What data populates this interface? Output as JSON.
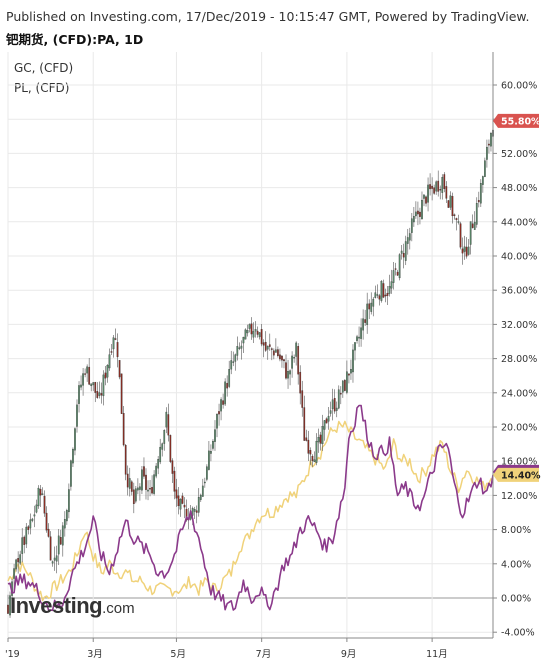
{
  "header": {
    "published": "Published on Investing.com, 17/Dec/2019 - 10:15:47 GMT, Powered by TradingView.",
    "symbol": "钯期货, (CFD):PA, 1D"
  },
  "legend": [
    {
      "label": "GC, (CFD)",
      "color": "#8b3a8b"
    },
    {
      "label": "PL, (CFD)",
      "color": "#f0d27a"
    }
  ],
  "logo": {
    "brand": "Investing",
    "domain": ".com"
  },
  "chart_data": {
    "type": "candlestick+line",
    "x_labels": [
      "'19",
      "3月",
      "5月",
      "7月",
      "9月",
      "11月"
    ],
    "x_label_positions": [
      0,
      42,
      83,
      125,
      167,
      209
    ],
    "num_bars": 240,
    "y_unit": "%",
    "ylim": [
      -4,
      62
    ],
    "yticks": [
      "60.00%",
      "56.00%",
      "52.00%",
      "48.00%",
      "44.00%",
      "40.00%",
      "36.00%",
      "32.00%",
      "28.00%",
      "24.00%",
      "20.00%",
      "16.00%",
      "12.00%",
      "8.00%",
      "4.00%",
      "0.00%",
      "-4.00%"
    ],
    "ytick_values": [
      60,
      56,
      52,
      48,
      44,
      40,
      36,
      32,
      28,
      24,
      20,
      16,
      12,
      8,
      4,
      0,
      -4
    ],
    "colors": {
      "up": "#5b8a6b",
      "down": "#8b2e24",
      "gc": "#8b3a8b",
      "pl": "#f0d27a"
    },
    "pa_series": {
      "name": "PA",
      "keypoints": [
        [
          0,
          -1
        ],
        [
          5,
          5
        ],
        [
          12,
          9
        ],
        [
          16,
          13
        ],
        [
          22,
          4
        ],
        [
          28,
          9
        ],
        [
          34,
          23
        ],
        [
          38,
          27
        ],
        [
          45,
          23
        ],
        [
          52,
          31
        ],
        [
          54,
          29
        ],
        [
          58,
          15
        ],
        [
          62,
          11
        ],
        [
          66,
          14
        ],
        [
          70,
          12
        ],
        [
          74,
          17
        ],
        [
          78,
          21
        ],
        [
          82,
          12
        ],
        [
          86,
          10
        ],
        [
          92,
          10
        ],
        [
          98,
          15
        ],
        [
          104,
          22
        ],
        [
          110,
          27
        ],
        [
          116,
          30
        ],
        [
          122,
          32
        ],
        [
          127,
          29
        ],
        [
          132,
          29
        ],
        [
          138,
          26
        ],
        [
          142,
          29
        ],
        [
          146,
          19
        ],
        [
          150,
          17
        ],
        [
          154,
          18
        ],
        [
          158,
          22
        ],
        [
          162,
          23
        ],
        [
          166,
          25
        ],
        [
          170,
          28
        ],
        [
          176,
          33
        ],
        [
          182,
          36
        ],
        [
          188,
          36
        ],
        [
          194,
          40
        ],
        [
          200,
          44
        ],
        [
          206,
          47
        ],
        [
          210,
          48
        ],
        [
          214,
          49
        ],
        [
          218,
          46
        ],
        [
          222,
          43
        ],
        [
          225,
          40
        ],
        [
          229,
          44
        ],
        [
          233,
          48
        ],
        [
          236,
          52
        ],
        [
          239,
          55.8
        ]
      ],
      "last_value": 55.8,
      "last_label": "55.80%"
    },
    "gc_series": {
      "name": "GC",
      "keypoints": [
        [
          0,
          1
        ],
        [
          6,
          2
        ],
        [
          10,
          2
        ],
        [
          14,
          1
        ],
        [
          20,
          -1
        ],
        [
          26,
          -1
        ],
        [
          32,
          3
        ],
        [
          38,
          6
        ],
        [
          42,
          9
        ],
        [
          46,
          5
        ],
        [
          50,
          3
        ],
        [
          54,
          6
        ],
        [
          58,
          9
        ],
        [
          62,
          7
        ],
        [
          66,
          6
        ],
        [
          70,
          5
        ],
        [
          74,
          3
        ],
        [
          78,
          3
        ],
        [
          82,
          5
        ],
        [
          86,
          8
        ],
        [
          90,
          10
        ],
        [
          94,
          7
        ],
        [
          98,
          3
        ],
        [
          100,
          1
        ],
        [
          104,
          0
        ],
        [
          108,
          -1
        ],
        [
          112,
          -1
        ],
        [
          116,
          2
        ],
        [
          120,
          0
        ],
        [
          124,
          1
        ],
        [
          128,
          -1
        ],
        [
          132,
          1
        ],
        [
          136,
          4
        ],
        [
          140,
          5
        ],
        [
          144,
          8
        ],
        [
          148,
          9
        ],
        [
          152,
          8
        ],
        [
          156,
          6
        ],
        [
          160,
          7
        ],
        [
          164,
          11
        ],
        [
          166,
          13
        ],
        [
          168,
          19
        ],
        [
          170,
          20
        ],
        [
          173,
          23
        ],
        [
          176,
          20
        ],
        [
          180,
          17
        ],
        [
          184,
          17
        ],
        [
          188,
          18
        ],
        [
          192,
          12
        ],
        [
          196,
          13
        ],
        [
          200,
          11
        ],
        [
          204,
          11
        ],
        [
          208,
          14
        ],
        [
          212,
          17
        ],
        [
          216,
          18
        ],
        [
          218,
          16
        ],
        [
          220,
          13
        ],
        [
          224,
          10
        ],
        [
          228,
          12
        ],
        [
          232,
          14
        ],
        [
          236,
          12
        ],
        [
          239,
          14.75
        ]
      ],
      "last_value": 14.75,
      "last_label": "14.75%"
    },
    "pl_series": {
      "name": "PL",
      "keypoints": [
        [
          0,
          2
        ],
        [
          5,
          4
        ],
        [
          10,
          3
        ],
        [
          14,
          1
        ],
        [
          18,
          0
        ],
        [
          22,
          1
        ],
        [
          26,
          2
        ],
        [
          30,
          3
        ],
        [
          34,
          5
        ],
        [
          38,
          8
        ],
        [
          42,
          5
        ],
        [
          46,
          3
        ],
        [
          50,
          4
        ],
        [
          54,
          3
        ],
        [
          58,
          3
        ],
        [
          62,
          2
        ],
        [
          66,
          2
        ],
        [
          70,
          1
        ],
        [
          74,
          1
        ],
        [
          78,
          1
        ],
        [
          82,
          1
        ],
        [
          86,
          1
        ],
        [
          90,
          2
        ],
        [
          94,
          1
        ],
        [
          98,
          2
        ],
        [
          102,
          1
        ],
        [
          106,
          2
        ],
        [
          110,
          3
        ],
        [
          114,
          6
        ],
        [
          118,
          7
        ],
        [
          122,
          9
        ],
        [
          126,
          10
        ],
        [
          130,
          10
        ],
        [
          134,
          11
        ],
        [
          138,
          12
        ],
        [
          142,
          12
        ],
        [
          146,
          14
        ],
        [
          150,
          16
        ],
        [
          154,
          17
        ],
        [
          158,
          19
        ],
        [
          162,
          20
        ],
        [
          166,
          20
        ],
        [
          170,
          19
        ],
        [
          174,
          18
        ],
        [
          178,
          17
        ],
        [
          182,
          16
        ],
        [
          186,
          15
        ],
        [
          190,
          18
        ],
        [
          194,
          16
        ],
        [
          198,
          16
        ],
        [
          202,
          14
        ],
        [
          206,
          15
        ],
        [
          210,
          17
        ],
        [
          214,
          18
        ],
        [
          218,
          15
        ],
        [
          222,
          13
        ],
        [
          226,
          15
        ],
        [
          230,
          14
        ],
        [
          234,
          13
        ],
        [
          239,
          14.4
        ]
      ],
      "last_value": 14.4,
      "last_label": "14.40%"
    }
  }
}
